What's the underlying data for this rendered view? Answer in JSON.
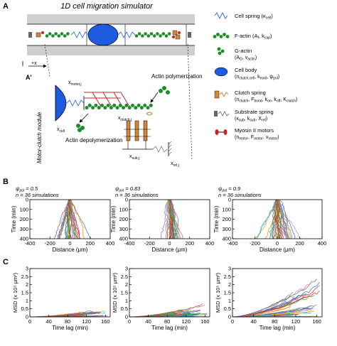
{
  "panel_a": {
    "letter": "A",
    "title": "1D cell migration simulator",
    "axis_label": "+x",
    "inset_letter": "A'",
    "side_label": "Motor-clutch module",
    "labels": {
      "x_motor": "x",
      "x_motor_sub": "motor,j",
      "x_cell": "x",
      "x_cell_sub": "cell",
      "x_clutch": "x",
      "x_clutch_sub": "clutch,j",
      "x_sub": "x",
      "x_sub_sub": "sub,j",
      "x_ref": "x",
      "x_ref_sub": "ref,j",
      "actin_poly": "Actin polymerization",
      "actin_depoly": "Actin depolymerization"
    }
  },
  "legend": [
    {
      "key": "cell-spring",
      "label": "Cell spring (κ",
      "sub": "cell",
      "tail": ")",
      "color": "#3a6fd8"
    },
    {
      "key": "f-actin",
      "label": "F-actin (A",
      "sub": "f",
      "tail": ", k",
      "sub2": "cap",
      "tail2": ")",
      "color": "#1e8c2a"
    },
    {
      "key": "g-actin",
      "label": "G-actin",
      "line2": "(A",
      "sub": "G",
      "tail": ", v",
      "sub2": "actin",
      "tail2": ")",
      "color": "#1e8c2a"
    },
    {
      "key": "cell-body",
      "label": "Cell body",
      "line2": "(n",
      "sub": "clutch,cell",
      "tail": ", k",
      "sub2": "mod",
      "tail2": ", ψ",
      "sub3": "pol",
      "tail3": ")",
      "color": "#1f5be0"
    },
    {
      "key": "clutch-spring",
      "label": "Clutch spring",
      "line2": "(n",
      "sub": "clutch",
      "tail": ", F",
      "sub2": "bond",
      "tail2": ", k",
      "sub3": "on",
      "tail3": ", k",
      "sub4": "off",
      "tail4": ", K",
      "sub5": "clutch",
      "tail5": ")",
      "color": "#d2873a"
    },
    {
      "key": "substrate-spring",
      "label": "Substrate spring",
      "line2": "(κ",
      "sub": "sub",
      "tail": ", k",
      "sub2": "sub",
      "tail2": ", X",
      "sub3": "ref",
      "tail3": ")",
      "color": "#777777"
    },
    {
      "key": "myosin-motors",
      "label": "Myosin II motors",
      "line2": "(n",
      "sub": "motor",
      "tail": ", F",
      "sub2": "motor",
      "tail2": ", v",
      "sub3": "motor",
      "tail3": ")",
      "color": "#cc2222"
    }
  ],
  "panel_b": {
    "letter": "B",
    "n_label": "n = 36 simulations",
    "psi_prefix": "ψ",
    "psi_sub": "pol",
    "charts": [
      {
        "psi_value": "= 0.5"
      },
      {
        "psi_value": "= 0.83"
      },
      {
        "psi_value": "= 0.9"
      }
    ],
    "ylabel": "Time (min)",
    "xlabel": "Distance (μm)"
  },
  "panel_c": {
    "letter": "C",
    "ylabel": "MSD (x 10⁵ μm²)",
    "xlabel": "Time lag (min)"
  },
  "chart_data": [
    {
      "type": "line",
      "panel": "B1",
      "psi": 0.5,
      "n": 36,
      "xlim": [
        -400,
        400
      ],
      "ylim": [
        0,
        400
      ],
      "y_inverted": true,
      "xticks": [
        -400,
        -200,
        0,
        200,
        400
      ],
      "yticks": [
        0,
        100,
        200,
        300,
        400
      ],
      "spread_um_at_400": 130,
      "drift_um": 0
    },
    {
      "type": "line",
      "panel": "B2",
      "psi": 0.83,
      "n": 36,
      "xlim": [
        -400,
        400
      ],
      "ylim": [
        0,
        400
      ],
      "y_inverted": true,
      "xticks": [
        -400,
        -200,
        0,
        200,
        400
      ],
      "yticks": [
        0,
        100,
        200,
        300,
        400
      ],
      "spread_um_at_400": 70,
      "drift_um": 40
    },
    {
      "type": "line",
      "panel": "B3",
      "psi": 0.9,
      "n": 36,
      "xlim": [
        -400,
        400
      ],
      "ylim": [
        0,
        400
      ],
      "y_inverted": true,
      "xticks": [
        -400,
        -200,
        0,
        200,
        400
      ],
      "yticks": [
        0,
        100,
        200,
        300,
        400
      ],
      "spread_um_at_400": 200,
      "drift_um": 30
    },
    {
      "type": "line",
      "panel": "C1",
      "xlim": [
        0,
        170
      ],
      "ylim": [
        0,
        3
      ],
      "xticks": [
        0,
        40,
        80,
        120,
        160
      ],
      "yticks": [
        0,
        0.5,
        1,
        1.5,
        2,
        2.5,
        3
      ],
      "max_msd_at_170": 0.6
    },
    {
      "type": "line",
      "panel": "C2",
      "xlim": [
        0,
        170
      ],
      "ylim": [
        0,
        3
      ],
      "xticks": [
        0,
        40,
        80,
        120,
        160
      ],
      "yticks": [
        0,
        0.5,
        1,
        1.5,
        2,
        2.5,
        3
      ],
      "max_msd_at_170": 0.9
    },
    {
      "type": "line",
      "panel": "C3",
      "xlim": [
        0,
        170
      ],
      "ylim": [
        0,
        3
      ],
      "xticks": [
        0,
        40,
        80,
        120,
        160
      ],
      "yticks": [
        0,
        0.5,
        1,
        1.5,
        2,
        2.5,
        3
      ],
      "max_msd_at_170": 3.0
    }
  ],
  "series_colors": [
    "#1f77b4",
    "#ff7f0e",
    "#2ca02c",
    "#d62728",
    "#9467bd",
    "#8c564b",
    "#e377c2",
    "#7f7f7f",
    "#bcbd22",
    "#17becf"
  ]
}
